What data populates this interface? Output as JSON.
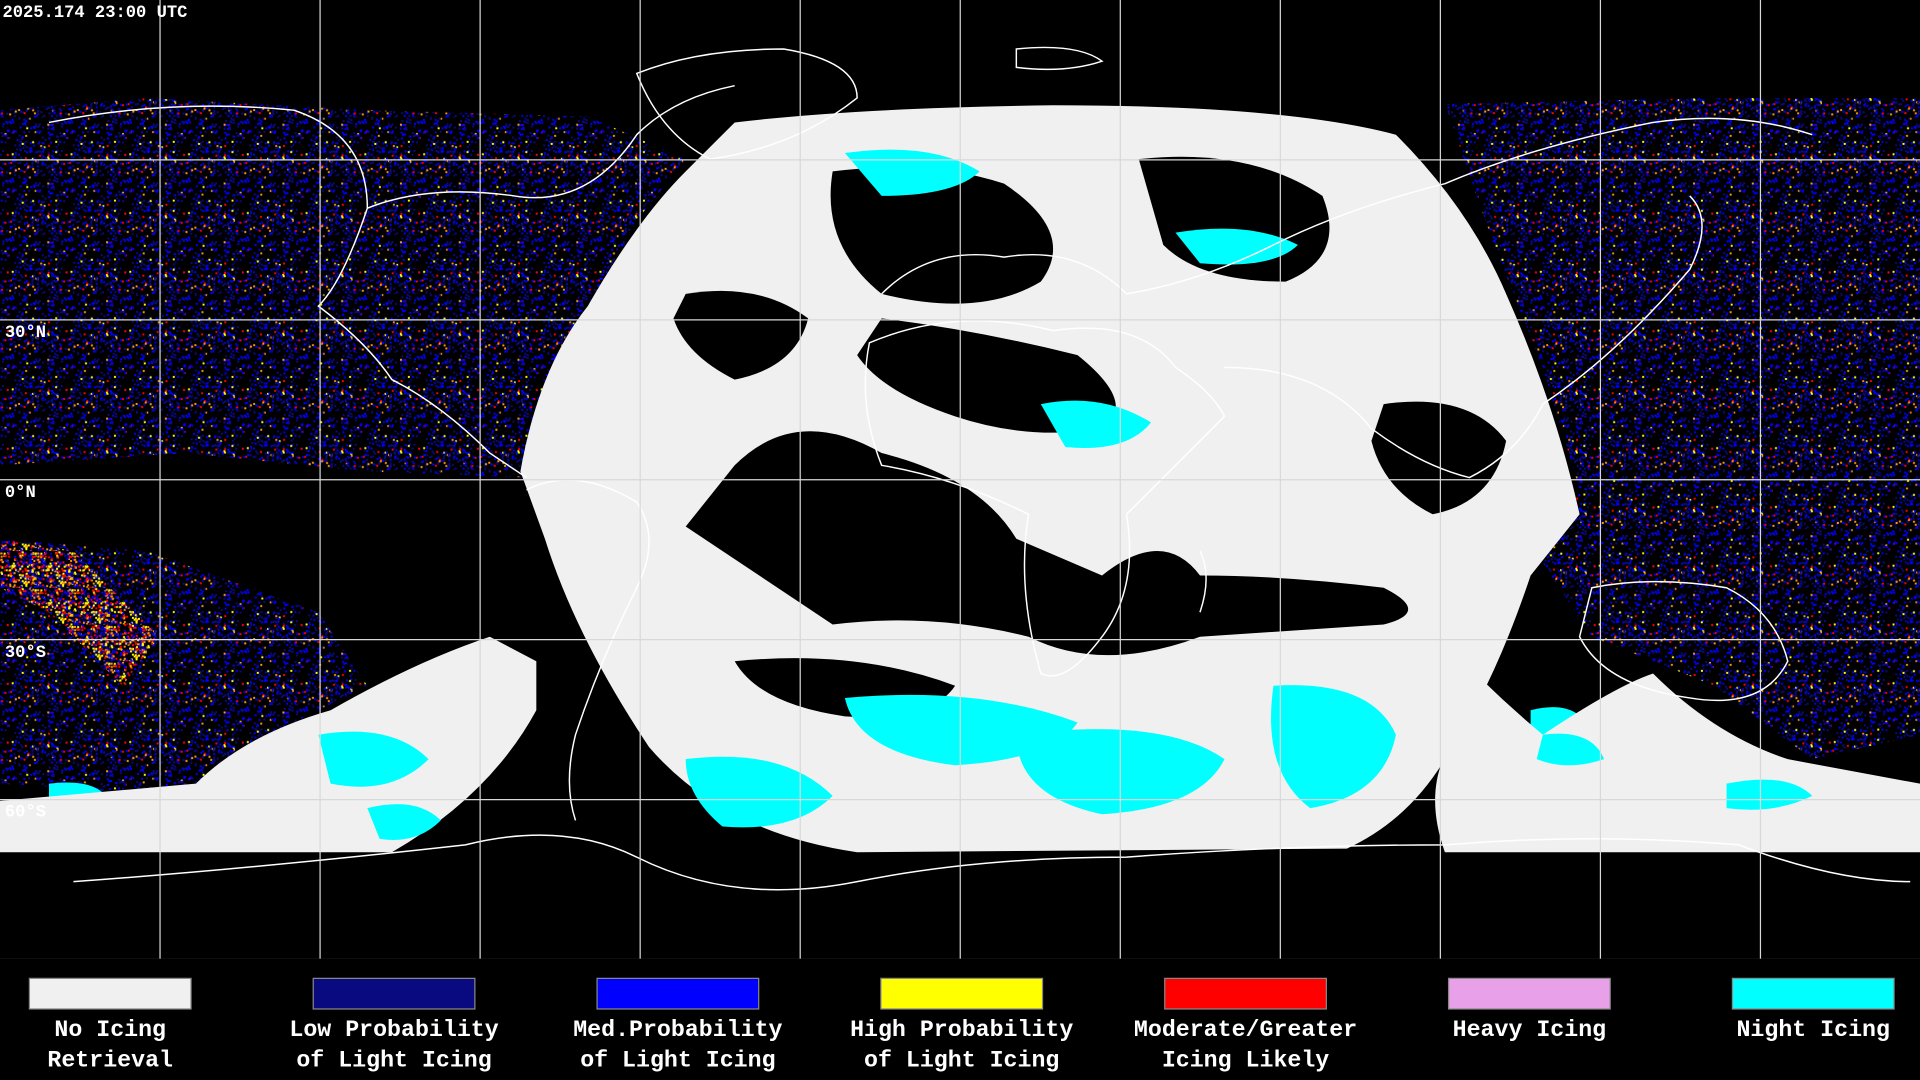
{
  "header": {
    "timestamp": "2025.174 23:00 UTC"
  },
  "latitude_labels": [
    "30°N",
    "0°N",
    "30°S",
    "60°S"
  ],
  "legend": {
    "items": [
      {
        "label": [
          "No Icing",
          "Retrieval"
        ],
        "color": "#f0f0f0"
      },
      {
        "label": [
          "Low Probability",
          "of Light Icing"
        ],
        "color": "#0a0a80"
      },
      {
        "label": [
          "Med.Probability",
          "of Light Icing"
        ],
        "color": "#0000ff"
      },
      {
        "label": [
          "High Probability",
          "of Light Icing"
        ],
        "color": "#ffff00"
      },
      {
        "label": [
          "Moderate/Greater",
          "Icing Likely"
        ],
        "color": "#ff0000"
      },
      {
        "label": [
          "Heavy Icing"
        ],
        "color": "#e8a0e8"
      },
      {
        "label": [
          "Night Icing"
        ],
        "color": "#00ffff"
      }
    ]
  }
}
